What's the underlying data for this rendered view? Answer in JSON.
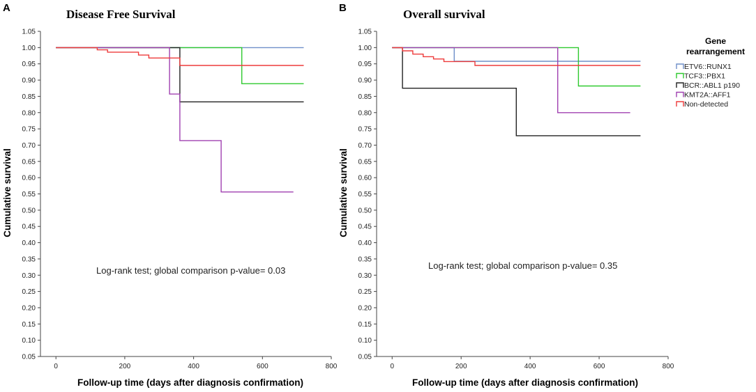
{
  "chart_data": [
    {
      "panel": "A",
      "type": "line",
      "step": true,
      "title": "Disease Free Survival",
      "xlabel": "Follow-up time (days after diagnosis confirmation)",
      "ylabel": "Cumulative survival",
      "xlim": [
        -45,
        800
      ],
      "ylim": [
        0.05,
        1.05
      ],
      "xticks": [
        0,
        200,
        400,
        600,
        800
      ],
      "yticks": [
        0.05,
        0.1,
        0.15,
        0.2,
        0.25,
        0.3,
        0.35,
        0.4,
        0.45,
        0.5,
        0.55,
        0.6,
        0.65,
        0.7,
        0.75,
        0.8,
        0.85,
        0.9,
        0.95,
        1.0,
        1.05
      ],
      "annotation": "Log-rank test; global comparison p-value= 0.03",
      "series": [
        {
          "name": "ETV6::RUNX1",
          "color": "#6f8fc9",
          "x": [
            0,
            720
          ],
          "y": [
            1.0,
            1.0
          ]
        },
        {
          "name": "TCF3::PBX1",
          "color": "#2ec92e",
          "x": [
            0,
            540,
            720
          ],
          "y": [
            1.0,
            0.889,
            0.889
          ]
        },
        {
          "name": "BCR::ABL1 p190",
          "color": "#222222",
          "x": [
            0,
            360,
            720
          ],
          "y": [
            1.0,
            0.833,
            0.833
          ]
        },
        {
          "name": "KMT2A::AFF1",
          "color": "#a040b0",
          "x": [
            0,
            330,
            360,
            480,
            690
          ],
          "y": [
            1.0,
            0.857,
            0.714,
            0.556,
            0.556
          ]
        },
        {
          "name": "Non-detected",
          "color": "#ee3b3b",
          "x": [
            0,
            120,
            150,
            240,
            270,
            360,
            720
          ],
          "y": [
            1.0,
            0.993,
            0.986,
            0.977,
            0.968,
            0.945,
            0.945
          ]
        }
      ]
    },
    {
      "panel": "B",
      "type": "line",
      "step": true,
      "title": "Overall survival",
      "xlabel": "Follow-up time (days after diagnosis confirmation)",
      "ylabel": "Cumulative survival",
      "xlim": [
        -45,
        800
      ],
      "ylim": [
        0.05,
        1.05
      ],
      "xticks": [
        0,
        200,
        400,
        600,
        800
      ],
      "yticks": [
        0.05,
        0.1,
        0.15,
        0.2,
        0.25,
        0.3,
        0.35,
        0.4,
        0.45,
        0.5,
        0.55,
        0.6,
        0.65,
        0.7,
        0.75,
        0.8,
        0.85,
        0.9,
        0.95,
        1.0,
        1.05
      ],
      "annotation": "Log-rank test; global comparison p-value= 0.35",
      "series": [
        {
          "name": "ETV6::RUNX1",
          "color": "#6f8fc9",
          "x": [
            0,
            180,
            720
          ],
          "y": [
            1.0,
            0.958,
            0.958
          ]
        },
        {
          "name": "TCF3::PBX1",
          "color": "#2ec92e",
          "x": [
            0,
            540,
            720
          ],
          "y": [
            1.0,
            0.882,
            0.882
          ]
        },
        {
          "name": "BCR::ABL1 p190",
          "color": "#222222",
          "x": [
            0,
            30,
            360,
            720
          ],
          "y": [
            1.0,
            0.875,
            0.729,
            0.729
          ]
        },
        {
          "name": "KMT2A::AFF1",
          "color": "#a040b0",
          "x": [
            0,
            480,
            690
          ],
          "y": [
            1.0,
            0.8,
            0.8
          ]
        },
        {
          "name": "Non-detected",
          "color": "#ee3b3b",
          "x": [
            0,
            30,
            60,
            90,
            120,
            150,
            240,
            720
          ],
          "y": [
            1.0,
            0.99,
            0.98,
            0.972,
            0.965,
            0.957,
            0.945,
            0.945
          ]
        }
      ]
    }
  ],
  "legend": {
    "title_line1": "Gene",
    "title_line2": "rearrangement",
    "entries": [
      {
        "label": "ETV6::RUNX1",
        "color": "#6f8fc9"
      },
      {
        "label": "TCF3::PBX1",
        "color": "#2ec92e"
      },
      {
        "label": "BCR::ABL1 p190",
        "color": "#222222"
      },
      {
        "label": "KMT2A::AFF1",
        "color": "#a040b0"
      },
      {
        "label": "Non-detected",
        "color": "#ee3b3b"
      }
    ]
  }
}
